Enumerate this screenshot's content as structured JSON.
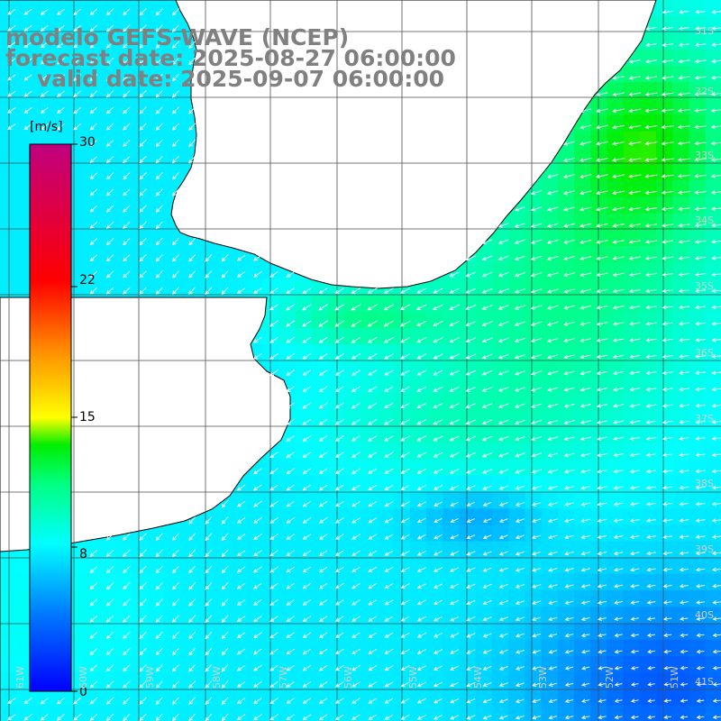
{
  "header": {
    "model": "modelo GEFS-WAVE (NCEP)",
    "forecast": "forecast date: 2025-08-27 06:00:00",
    "valid": "    valid date: 2025-09-07 06:00:00"
  },
  "colorbar": {
    "unit": "[m/s]",
    "tick_labels": [
      "30",
      "22",
      "15",
      "8",
      "0"
    ],
    "tick_values": [
      30,
      22,
      15,
      8,
      0
    ],
    "min": 0,
    "max": 30
  },
  "latitude_labels": [
    "31S",
    "32S",
    "33S",
    "34S",
    "35S",
    "36S",
    "37S",
    "38S",
    "39S",
    "40S",
    "41S"
  ],
  "longitude_labels": [
    "61W",
    "60W",
    "59W",
    "58W",
    "57W",
    "56W",
    "55W",
    "54W",
    "53W",
    "52W",
    "51W"
  ],
  "colors": {
    "land": "#ffffff",
    "grid": "#4d4d4d",
    "coast": "#000000",
    "vectors": "#ffffff",
    "title": "#808080"
  },
  "field": {
    "variable": "wind speed",
    "dominant_direction": "from east-northeast"
  }
}
